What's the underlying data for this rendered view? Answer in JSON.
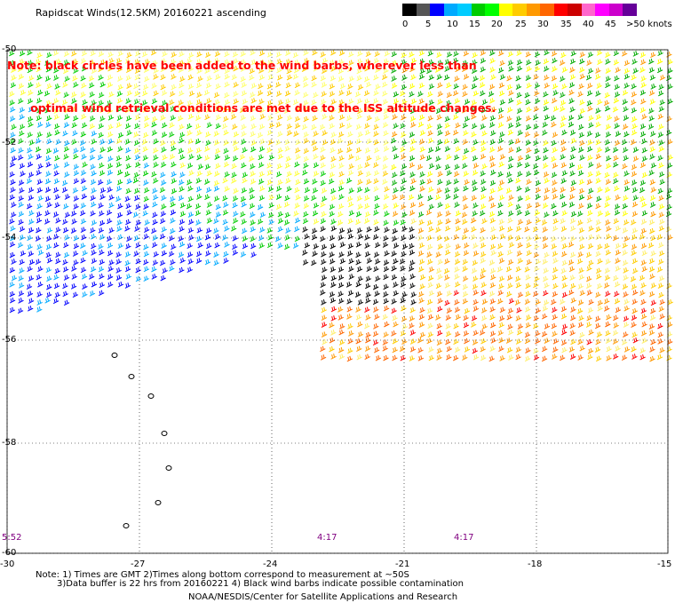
{
  "title": "Rapidscat Winds(12.5KM) 20160221 ascending",
  "note_line1": "Note: black circles have been added to the wind barbs, wherever less than",
  "note_line2": "      optimal wind retrieval conditions are met due to the ISS altitude changes.",
  "legend": {
    "colors": [
      "#000000",
      "#555555",
      "#0000ff",
      "#00aaff",
      "#00ccff",
      "#00cc00",
      "#00ff00",
      "#ffff00",
      "#ffcc00",
      "#ff9900",
      "#ff6600",
      "#ff0000",
      "#cc0000",
      "#ff66cc",
      "#ff00ff",
      "#cc00cc",
      "#660099"
    ],
    "labels": [
      "0",
      "5",
      "10",
      "15",
      "20",
      "25",
      "30",
      "35",
      "40",
      "45",
      ">50 knots"
    ]
  },
  "lat_labels": [
    "-50",
    "-52",
    "-54",
    "-56",
    "-58",
    "-60"
  ],
  "lon_labels": [
    "-30",
    "-27",
    "-24",
    "-21",
    "-18",
    "-15"
  ],
  "time_labels": [
    "5:52",
    "4:17",
    "4:17"
  ],
  "footnote1": "Note: 1) Times are GMT 2)Times along bottom correspond to measurement at ~50S",
  "footnote2": "3)Data buffer is 22 hrs from 20160221 4) Black wind barbs indicate possible contamination",
  "credit": "NOAA/NESDIS/Center for Satellite Applications and Research"
}
